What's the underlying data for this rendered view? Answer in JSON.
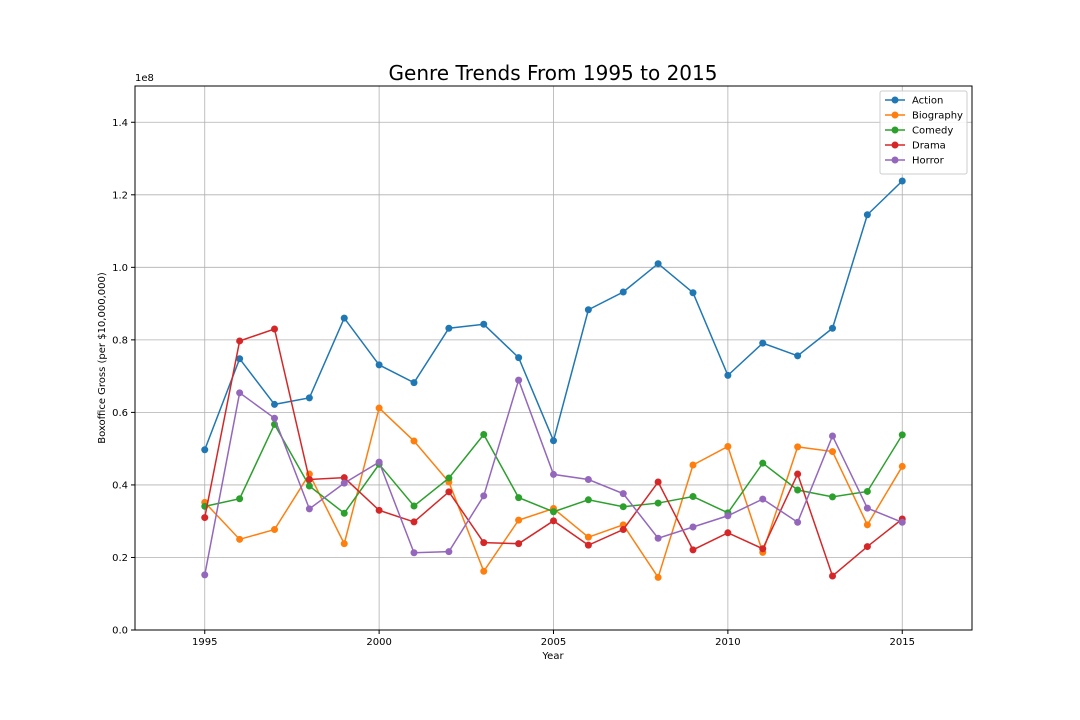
{
  "chart_data": {
    "type": "line",
    "title": "Genre Trends From 1995 to 2015",
    "xlabel": "Year",
    "ylabel": "Boxoffice Gross (per $10,000,000)",
    "y_offset_label": "1e8",
    "xlim": [
      1993,
      2017
    ],
    "ylim": [
      0,
      1.5
    ],
    "x_ticks": [
      1995,
      2000,
      2005,
      2010,
      2015
    ],
    "y_ticks": [
      0.0,
      0.2,
      0.4,
      0.6,
      0.8,
      1.0,
      1.2,
      1.4
    ],
    "grid": true,
    "legend_position": "top-right",
    "x": [
      1995,
      1996,
      1997,
      1998,
      1999,
      2000,
      2001,
      2002,
      2003,
      2004,
      2005,
      2006,
      2007,
      2008,
      2009,
      2010,
      2011,
      2012,
      2013,
      2014,
      2015
    ],
    "series": [
      {
        "name": "Action",
        "color": "#1f77b4",
        "values": [
          0.497,
          0.748,
          0.622,
          0.64,
          0.86,
          0.731,
          0.682,
          0.832,
          0.843,
          0.751,
          0.522,
          0.883,
          0.932,
          1.01,
          0.93,
          0.702,
          0.791,
          0.756,
          0.832,
          1.145,
          1.238
        ]
      },
      {
        "name": "Biography",
        "color": "#ff7f0e",
        "values": [
          0.352,
          0.25,
          0.277,
          0.43,
          0.238,
          0.612,
          0.521,
          0.408,
          0.162,
          0.303,
          0.335,
          0.256,
          0.29,
          0.145,
          0.455,
          0.506,
          0.214,
          0.505,
          0.492,
          0.29,
          0.451
        ]
      },
      {
        "name": "Comedy",
        "color": "#2ca02c",
        "values": [
          0.341,
          0.362,
          0.567,
          0.397,
          0.322,
          0.457,
          0.342,
          0.419,
          0.539,
          0.365,
          0.326,
          0.359,
          0.34,
          0.35,
          0.368,
          0.323,
          0.46,
          0.386,
          0.367,
          0.382,
          0.538
        ]
      },
      {
        "name": "Drama",
        "color": "#d62728",
        "values": [
          0.31,
          0.797,
          0.83,
          0.415,
          0.42,
          0.33,
          0.298,
          0.381,
          0.241,
          0.238,
          0.301,
          0.234,
          0.277,
          0.408,
          0.221,
          0.268,
          0.224,
          0.43,
          0.149,
          0.23,
          0.306
        ]
      },
      {
        "name": "Horror",
        "color": "#9467bd",
        "values": [
          0.152,
          0.654,
          0.584,
          0.334,
          0.405,
          0.463,
          0.213,
          0.216,
          0.37,
          0.689,
          0.429,
          0.415,
          0.376,
          0.253,
          0.284,
          0.315,
          0.361,
          0.297,
          0.535,
          0.336,
          0.297
        ]
      }
    ]
  }
}
